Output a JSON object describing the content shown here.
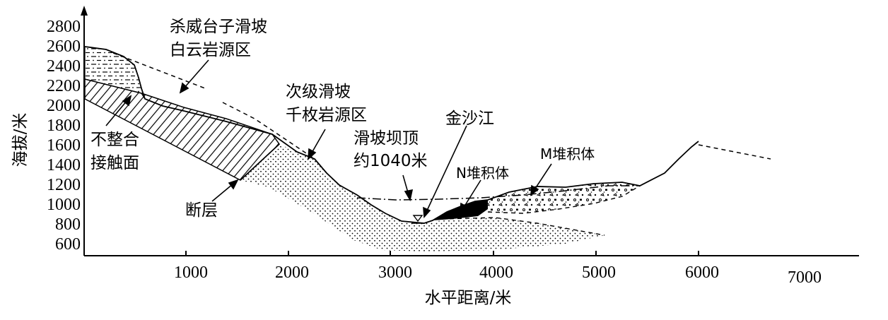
{
  "axes": {
    "y_label": "海拔/米",
    "x_label": "水平距离/米",
    "y_ticks": [
      "2800",
      "2600",
      "2400",
      "2200",
      "2000",
      "1800",
      "1600",
      "1400",
      "1200",
      "1000",
      "800",
      "600"
    ],
    "x_ticks": [
      "1000",
      "2000",
      "3000",
      "4000",
      "5000",
      "6000",
      "7000"
    ]
  },
  "labels": {
    "landslide_line1": "杀威台子滑坡",
    "landslide_line2": "白云岩源区",
    "secondary_line1": "次级滑坡",
    "secondary_line2": "千枚岩源区",
    "unconformity_line1": "不整合",
    "unconformity_line2": "接触面",
    "fault": "断层",
    "dam_line1": "滑坡坝顶",
    "dam_line2": "约1040米",
    "river": "金沙江",
    "n_deposit": "N堆积体",
    "m_deposit": "M堆积体"
  }
}
